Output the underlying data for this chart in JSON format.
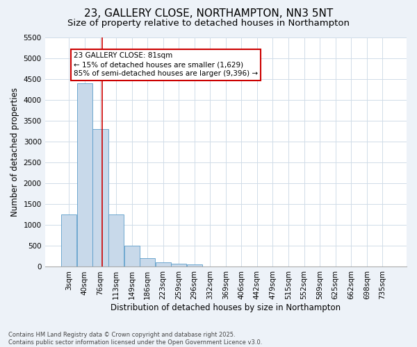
{
  "title": "23, GALLERY CLOSE, NORTHAMPTON, NN3 5NT",
  "subtitle": "Size of property relative to detached houses in Northampton",
  "xlabel": "Distribution of detached houses by size in Northampton",
  "ylabel": "Number of detached properties",
  "categories": [
    "3sqm",
    "40sqm",
    "76sqm",
    "113sqm",
    "149sqm",
    "186sqm",
    "223sqm",
    "259sqm",
    "296sqm",
    "332sqm",
    "369sqm",
    "406sqm",
    "442sqm",
    "479sqm",
    "515sqm",
    "552sqm",
    "589sqm",
    "625sqm",
    "662sqm",
    "698sqm",
    "735sqm"
  ],
  "values": [
    1250,
    4400,
    3300,
    1250,
    500,
    200,
    100,
    80,
    50,
    0,
    0,
    0,
    0,
    0,
    0,
    0,
    0,
    0,
    0,
    0,
    0
  ],
  "bar_color": "#c8d9ea",
  "bar_edge_color": "#5b9dc9",
  "ylim": [
    0,
    5500
  ],
  "yticks": [
    0,
    500,
    1000,
    1500,
    2000,
    2500,
    3000,
    3500,
    4000,
    4500,
    5000,
    5500
  ],
  "vline_x": 2.1,
  "vline_color": "#cc0000",
  "annotation_text": "23 GALLERY CLOSE: 81sqm\n← 15% of detached houses are smaller (1,629)\n85% of semi-detached houses are larger (9,396) →",
  "annotation_box_color": "#cc0000",
  "footer_line1": "Contains HM Land Registry data © Crown copyright and database right 2025.",
  "footer_line2": "Contains public sector information licensed under the Open Government Licence v3.0.",
  "bg_color": "#edf2f8",
  "plot_bg_color": "#ffffff",
  "grid_color": "#d0dce8",
  "title_fontsize": 11,
  "subtitle_fontsize": 9.5,
  "axis_label_fontsize": 8.5,
  "tick_fontsize": 7.5,
  "annotation_fontsize": 7.5,
  "footer_fontsize": 6
}
